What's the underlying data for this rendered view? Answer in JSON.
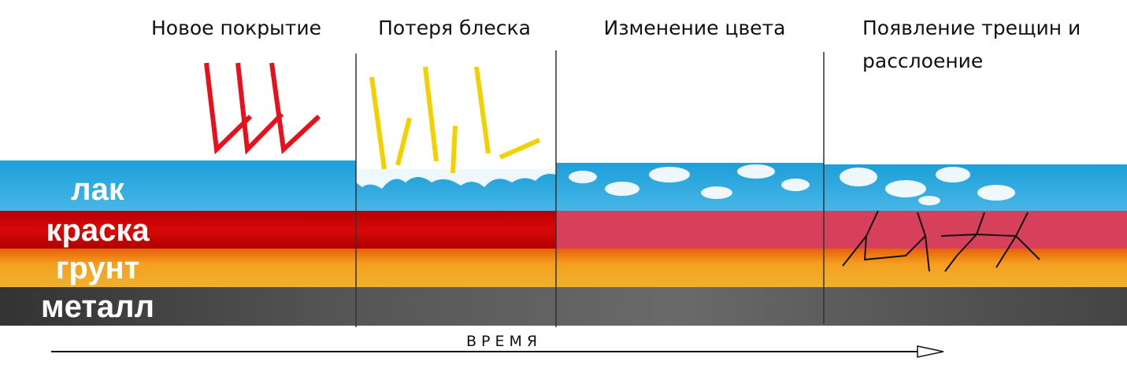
{
  "stages": [
    {
      "lines": [
        "Новое покрытие"
      ]
    },
    {
      "lines": [
        "Потеря блеска"
      ]
    },
    {
      "lines": [
        "Изменение цвета"
      ]
    },
    {
      "lines": [
        "Появление трещин и",
        "расслоение"
      ]
    }
  ],
  "layers": [
    "лак",
    "краска",
    "грунт",
    "металл"
  ],
  "axis_label": "ВРЕМЯ"
}
